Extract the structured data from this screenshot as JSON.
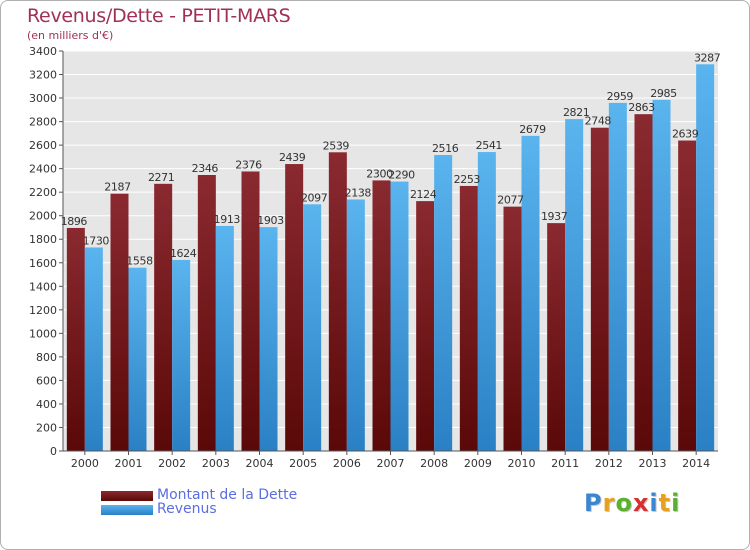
{
  "header": {
    "title": "Revenus/Dette - PETIT-MARS",
    "subtitle": "(en milliers d'€)"
  },
  "chart_data": {
    "type": "bar",
    "categories": [
      "2000",
      "2001",
      "2002",
      "2003",
      "2004",
      "2005",
      "2006",
      "2007",
      "2008",
      "2009",
      "2010",
      "2011",
      "2012",
      "2013",
      "2014"
    ],
    "series": [
      {
        "name": "Montant de la Dette",
        "color": "#7a1c20",
        "values": [
          1896,
          2187,
          2271,
          2346,
          2376,
          2439,
          2539,
          2300,
          2124,
          2253,
          2077,
          1937,
          2748,
          2863,
          2639
        ],
        "labels": [
          "1896",
          "2187",
          "2271",
          "2346",
          "2376",
          "2439",
          "2539",
          "2300",
          "2124",
          "2253",
          "2077",
          "1937",
          "2748",
          "2863",
          "2639"
        ]
      },
      {
        "name": "Revenus",
        "color": "#3a9ee0",
        "values": [
          1730,
          1558,
          1624,
          1913,
          1903,
          2097,
          2138,
          2290,
          2516,
          2541,
          2679,
          2821,
          2959,
          2985,
          3287
        ],
        "labels": [
          "1730",
          "1558",
          "1624",
          "1913",
          "1903",
          "2097",
          "2138",
          "2290",
          "2516",
          "2541",
          "2679",
          "2821",
          "2959",
          "2985",
          "3287"
        ]
      }
    ],
    "ylim": [
      0,
      3400
    ],
    "yticks": [
      0,
      200,
      400,
      600,
      800,
      1000,
      1200,
      1400,
      1600,
      1800,
      2000,
      2200,
      2400,
      2600,
      2800,
      3000,
      3200,
      3400
    ],
    "grid": true,
    "legend_position": "bottom-left"
  },
  "legend": {
    "items": [
      {
        "label": "Montant de la Dette",
        "color": "#7a1c20"
      },
      {
        "label": "Revenus",
        "color": "#3a9ee0"
      }
    ]
  },
  "logo": {
    "letters": [
      "P",
      "r",
      "o",
      "x",
      "i",
      "t",
      "i"
    ],
    "colors": [
      "#3a86d0",
      "#e8a020",
      "#5cb030",
      "#d83030",
      "#3a86d0",
      "#e8a020",
      "#5cb030"
    ]
  }
}
